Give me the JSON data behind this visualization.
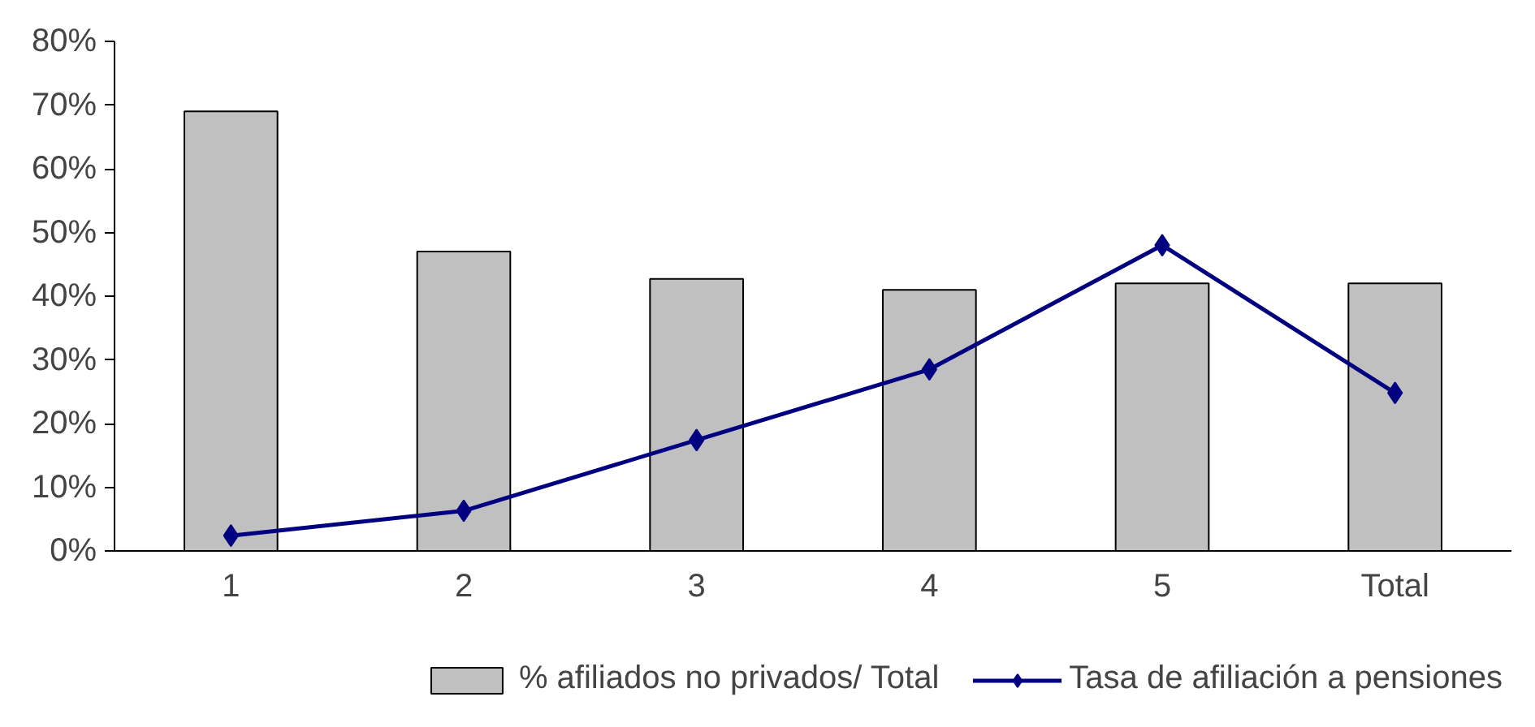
{
  "chart_data": {
    "type": "bar",
    "categories": [
      "1",
      "2",
      "3",
      "4",
      "5",
      "Total"
    ],
    "series": [
      {
        "name": "% afiliados no privados/ Total",
        "color": "#c0c0c0",
        "values": [
          69,
          47,
          42.7,
          41,
          42,
          42
        ]
      },
      {
        "name": "Tasa de afiliación a pensiones",
        "type": "line",
        "color": "#000080",
        "values": [
          2.4,
          6.3,
          17.4,
          28.5,
          48,
          24.8
        ]
      }
    ],
    "ylim": [
      0,
      80
    ],
    "yticks": [
      {
        "value": 0,
        "label": "0%"
      },
      {
        "value": 10,
        "label": "10%"
      },
      {
        "value": 20,
        "label": "20%"
      },
      {
        "value": 30,
        "label": "30%"
      },
      {
        "value": 40,
        "label": "40%"
      },
      {
        "value": 50,
        "label": "50%"
      },
      {
        "value": 60,
        "label": "60%"
      },
      {
        "value": 70,
        "label": "70%"
      },
      {
        "value": 80,
        "label": "80%"
      }
    ],
    "grid": false,
    "legend": "bottom",
    "marker": "diamond",
    "line_style": "solid"
  }
}
